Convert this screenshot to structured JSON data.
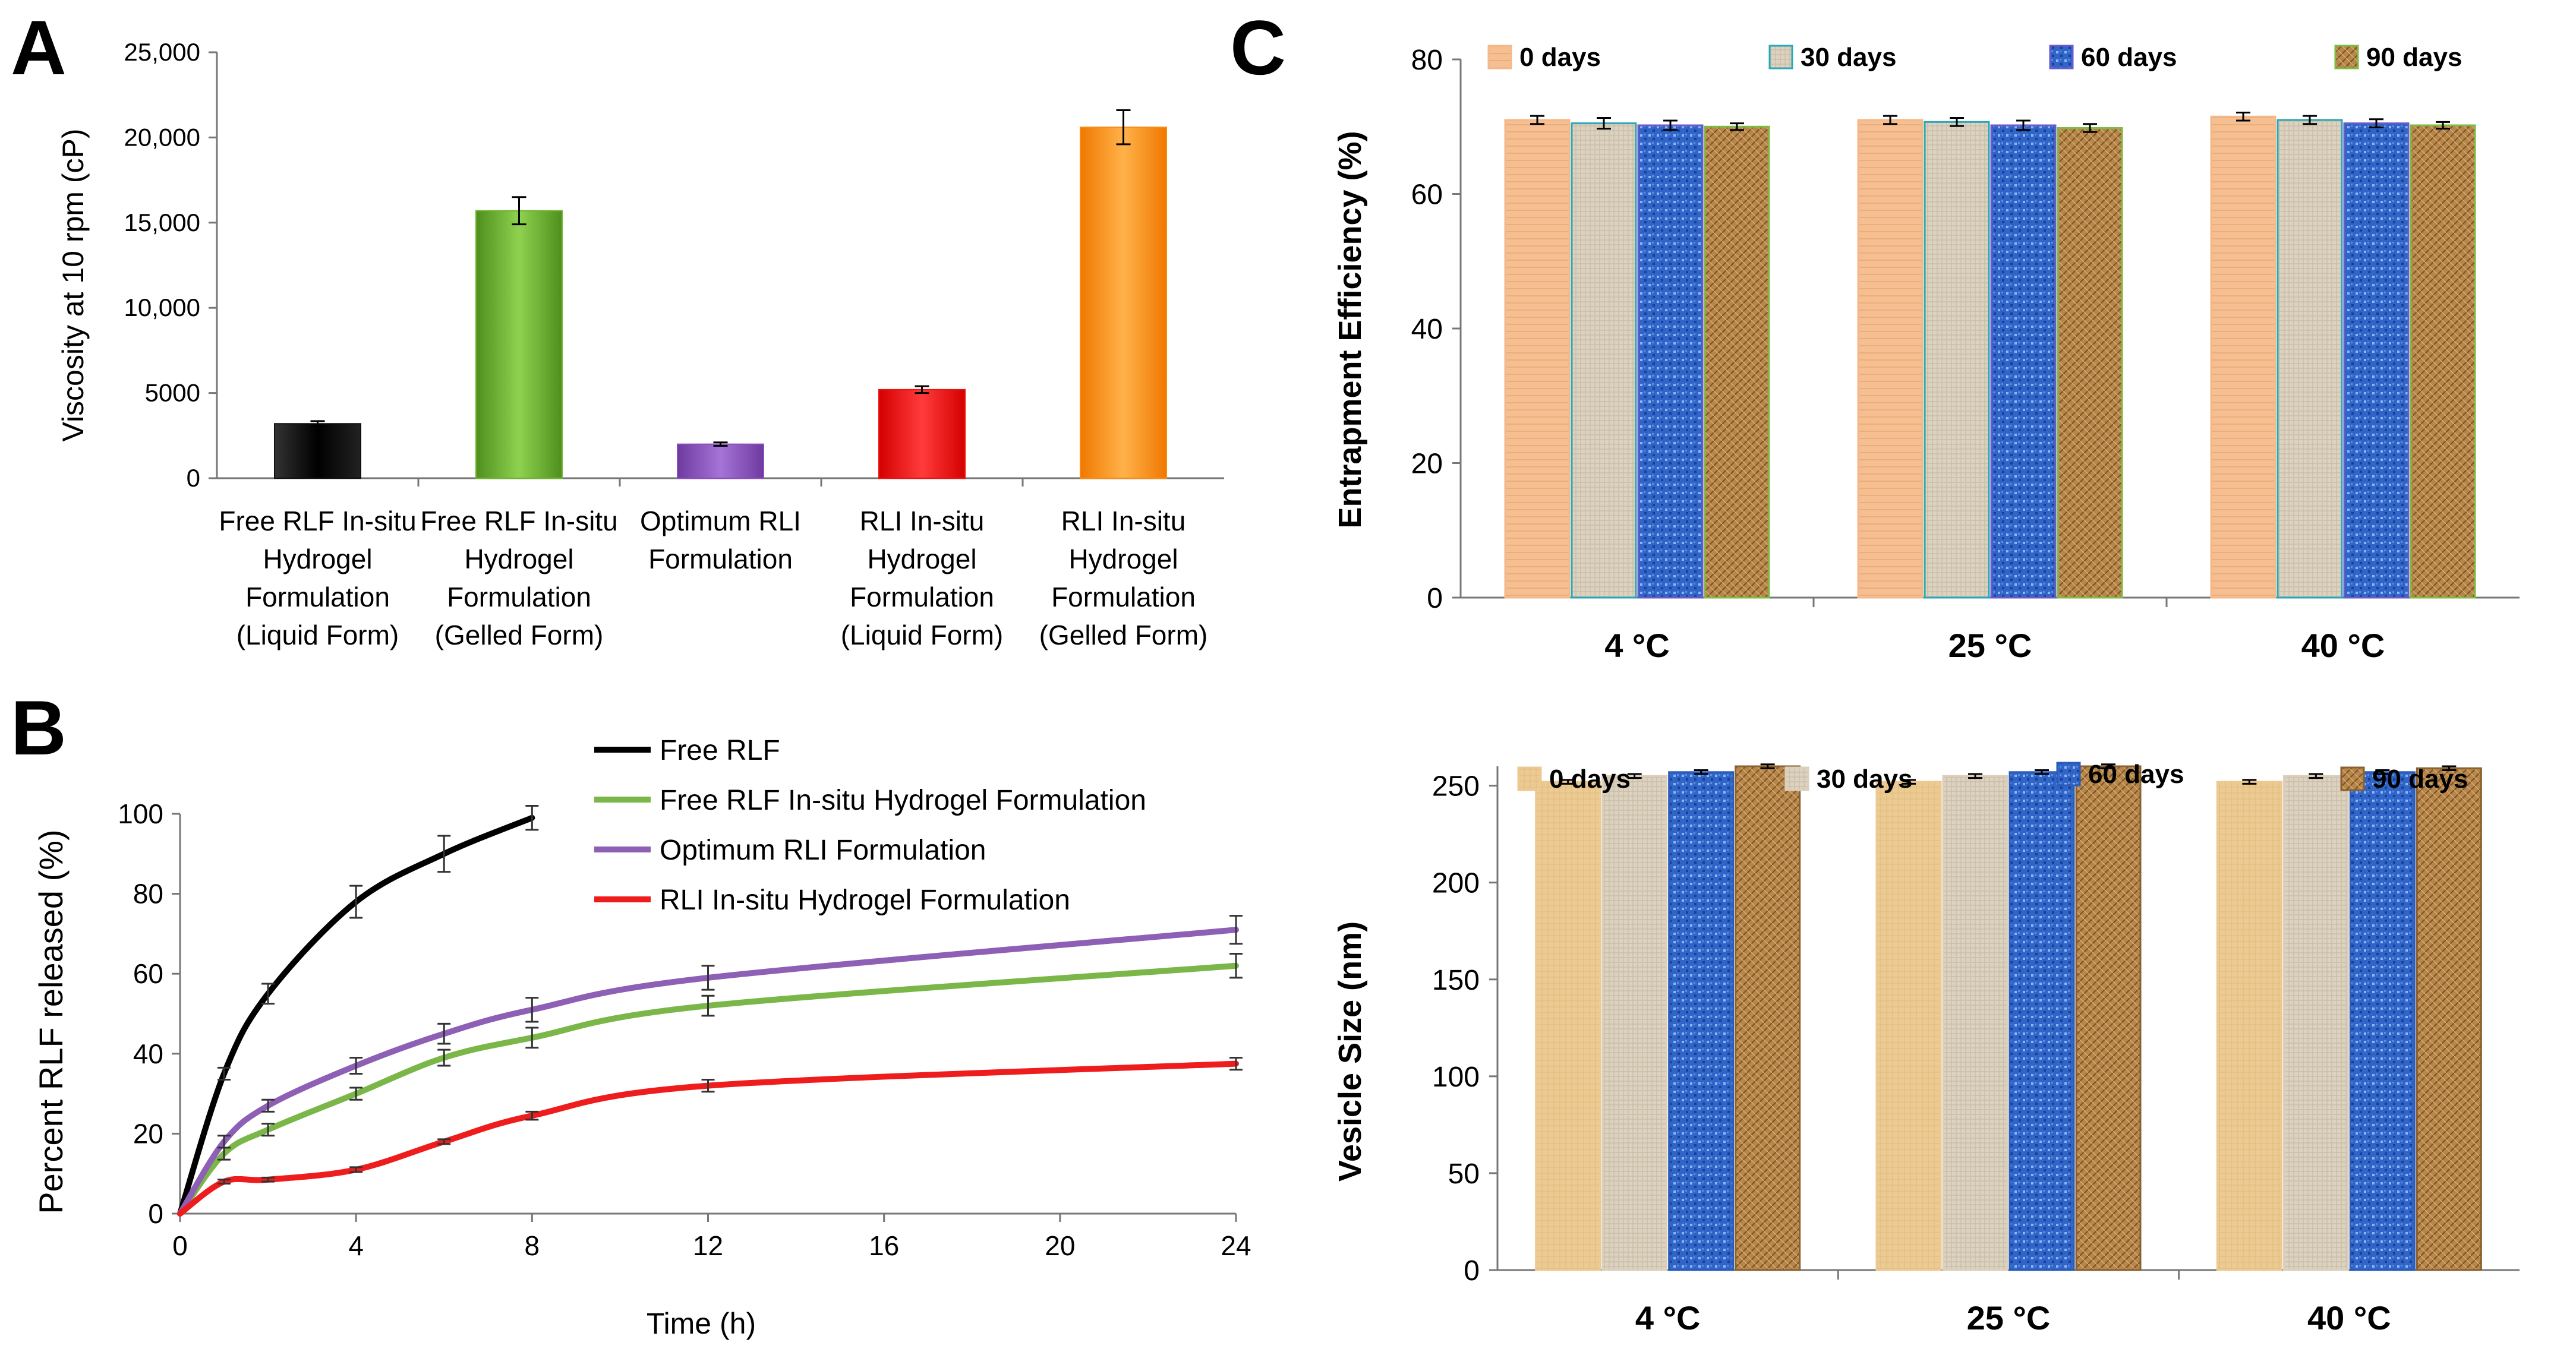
{
  "chart_data": [
    {
      "panel": "A",
      "type": "bar",
      "title": "",
      "xlabel": "",
      "ylabel": "Viscosity at 10 rpm (cP)",
      "ylim": [
        0,
        25000
      ],
      "yticks": [
        "0",
        "5000",
        "10,000",
        "15,000",
        "20,000",
        "25,000"
      ],
      "categories": [
        [
          "Free RLF In-situ",
          "Hydrogel",
          "Formulation",
          "(Liquid Form)"
        ],
        [
          "Free RLF In-situ",
          "Hydrogel",
          "Formulation",
          "(Gelled Form)"
        ],
        [
          "Optimum RLI",
          "Formulation"
        ],
        [
          "RLI In-situ",
          "Hydrogel",
          "Formulation",
          "(Liquid Form)"
        ],
        [
          "RLI In-situ",
          "Hydrogel",
          "Formulation",
          "(Gelled Form)"
        ]
      ],
      "values": [
        3200,
        15700,
        2000,
        5200,
        20600
      ],
      "errors": [
        150,
        800,
        100,
        200,
        1000
      ],
      "colors": [
        "#111111",
        "#6fb52c",
        "#8a4fbf",
        "#ee1111",
        "#f98c10"
      ]
    },
    {
      "panel": "B",
      "type": "line",
      "xlabel": "Time (h)",
      "ylabel": "Percent RLF released (%)",
      "xlim": [
        0,
        24
      ],
      "ylim": [
        0,
        100
      ],
      "xticks": [
        "0",
        "4",
        "8",
        "12",
        "16",
        "20",
        "24"
      ],
      "yticks": [
        "0",
        "20",
        "40",
        "60",
        "80",
        "100"
      ],
      "series": [
        {
          "name": "Free RLF",
          "color": "#000000",
          "x": [
            0,
            1,
            2,
            4,
            6,
            8
          ],
          "values": [
            0,
            35,
            55,
            78,
            90,
            99
          ],
          "errors": [
            0,
            1.5,
            2.5,
            4,
            4.5,
            3
          ]
        },
        {
          "name": "Free RLF In-situ Hydrogel Formulation",
          "color": "#7ab648",
          "x": [
            0,
            1,
            2,
            4,
            6,
            8,
            12,
            24
          ],
          "values": [
            0,
            15,
            21,
            30,
            39,
            44,
            52,
            62
          ],
          "errors": [
            0,
            1.5,
            1.5,
            1.5,
            2,
            2.5,
            2.5,
            3
          ]
        },
        {
          "name": "Optimum RLI Formulation",
          "color": "#8d5fb5",
          "x": [
            0,
            1,
            2,
            4,
            6,
            8,
            12,
            24
          ],
          "values": [
            0,
            18,
            27,
            37,
            45,
            51,
            59,
            71
          ],
          "errors": [
            0,
            1.5,
            1.5,
            2,
            2.5,
            3,
            3,
            3.5
          ]
        },
        {
          "name": "RLI In-situ Hydrogel Formulation",
          "color": "#ee1c1c",
          "x": [
            0,
            1,
            2,
            4,
            6,
            8,
            12,
            24
          ],
          "values": [
            0,
            8,
            8.5,
            11,
            18,
            24.5,
            32,
            37.5
          ],
          "errors": [
            0,
            0.5,
            0.5,
            0.6,
            0.6,
            1,
            1.5,
            1.5
          ]
        }
      ]
    },
    {
      "panel": "C-top",
      "type": "bar",
      "xlabel": "",
      "ylabel": "Entrapment Efficiency (%)",
      "ylim": [
        0,
        80
      ],
      "yticks": [
        "0",
        "20",
        "40",
        "60",
        "80"
      ],
      "categories": [
        "4 °C",
        "25 °C",
        "40 °C"
      ],
      "series": [
        {
          "name": "0 days",
          "values": [
            71,
            71,
            71.5
          ],
          "errors": [
            0.6,
            0.6,
            0.6
          ]
        },
        {
          "name": "30 days",
          "values": [
            70.5,
            70.7,
            71
          ],
          "errors": [
            0.8,
            0.6,
            0.6
          ]
        },
        {
          "name": "60 days",
          "values": [
            70.2,
            70.2,
            70.5
          ],
          "errors": [
            0.7,
            0.7,
            0.6
          ]
        },
        {
          "name": "90 days",
          "values": [
            70,
            69.8,
            70.2
          ],
          "errors": [
            0.5,
            0.6,
            0.5
          ]
        }
      ]
    },
    {
      "panel": "C-bottom",
      "type": "bar",
      "xlabel": "",
      "ylabel": "Vesicle Size (nm)",
      "ylim": [
        0,
        260
      ],
      "yticks": [
        "0",
        "50",
        "100",
        "150",
        "200",
        "250"
      ],
      "categories": [
        "4 °C",
        "25 °C",
        "40 °C"
      ],
      "series": [
        {
          "name": "0 days",
          "values": [
            252,
            252,
            252
          ],
          "errors": [
            1,
            1,
            1
          ]
        },
        {
          "name": "30 days",
          "values": [
            255,
            255,
            255
          ],
          "errors": [
            1,
            1,
            1
          ]
        },
        {
          "name": "60 days",
          "values": [
            257,
            257,
            257
          ],
          "errors": [
            1,
            1,
            1
          ]
        },
        {
          "name": "90 days",
          "values": [
            260,
            260,
            259
          ],
          "errors": [
            1,
            1,
            1
          ]
        }
      ]
    }
  ],
  "panel_labels": {
    "a": "A",
    "b": "B",
    "c": "C"
  },
  "series_colors": {
    "c_top": [
      "#f4b98a",
      "#ddd3c0",
      "#3a6fd6",
      "#b98a45"
    ],
    "c_bottom": [
      "#ecc990",
      "#dbd0bd",
      "#3d72d2",
      "#b8874a"
    ]
  }
}
